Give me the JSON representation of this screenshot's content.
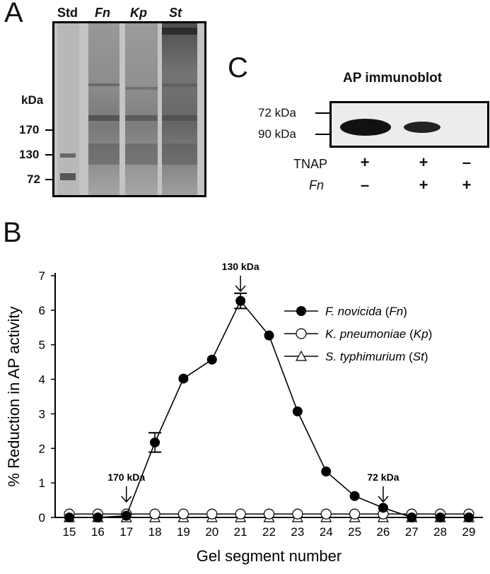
{
  "panel_a": {
    "letter": "A",
    "lanes": [
      {
        "label": "Std",
        "italic": false
      },
      {
        "label": "Fn",
        "italic": true
      },
      {
        "label": "Kp",
        "italic": true
      },
      {
        "label": "St",
        "italic": true
      }
    ],
    "unit": "kDa",
    "markers": [
      "170",
      "130",
      "72"
    ]
  },
  "panel_c": {
    "letter": "C",
    "title": "AP immunoblot",
    "markers": [
      "72 kDa",
      "90 kDa"
    ],
    "rows": [
      {
        "label": "TNAP",
        "italic": false,
        "signs": [
          "+",
          "+",
          "–"
        ]
      },
      {
        "label": "Fn",
        "italic": true,
        "signs": [
          "–",
          "+",
          "+"
        ]
      }
    ]
  },
  "panel_b": {
    "letter": "B"
  },
  "chart_data": {
    "type": "line",
    "xlabel": "Gel segment number",
    "ylabel": "% Reduction in AP activity",
    "x": [
      15,
      16,
      17,
      18,
      19,
      20,
      21,
      22,
      23,
      24,
      25,
      26,
      27,
      28,
      29
    ],
    "xlim": [
      15,
      29
    ],
    "ylim": [
      0,
      7
    ],
    "yticks": [
      0,
      1,
      2,
      3,
      4,
      5,
      6,
      7
    ],
    "series": [
      {
        "name": "F. novicida (Fn)",
        "marker": "filled-circle",
        "values": [
          0,
          0,
          0.05,
          2.17,
          4.02,
          4.57,
          6.27,
          5.27,
          3.07,
          1.33,
          0.62,
          0.28,
          0,
          0,
          0
        ],
        "error": [
          0,
          0,
          0,
          0.28,
          0,
          0,
          0.22,
          0,
          0,
          0,
          0,
          0,
          0,
          0,
          0
        ]
      },
      {
        "name": "K. pneumoniae (Kp)",
        "marker": "open-circle",
        "values": [
          0.1,
          0.1,
          0.1,
          0.1,
          0.1,
          0.1,
          0.1,
          0.1,
          0.1,
          0.1,
          0.1,
          0.1,
          0.1,
          0.1,
          0.1
        ]
      },
      {
        "name": "S. typhimurium (St)",
        "marker": "open-triangle",
        "values": [
          0,
          0,
          0,
          0,
          0,
          0,
          0,
          0,
          0,
          0,
          0,
          0,
          0,
          0,
          0
        ]
      }
    ],
    "legend": [
      {
        "italic": "F. novicida",
        "rest": " (",
        "abbr": "Fn",
        "close": ")"
      },
      {
        "italic": "K. pneumoniae",
        "rest": " (",
        "abbr": "Kp",
        "close": ")"
      },
      {
        "italic": "S. typhimurium",
        "rest": " (",
        "abbr": "St",
        "close": ")"
      }
    ],
    "legend_position": "top-right",
    "annotations": [
      {
        "text": "130 kDa",
        "x": 21,
        "y": 6.55
      },
      {
        "text": "170 kDa",
        "x": 17,
        "y": 0.45
      },
      {
        "text": "72 kDa",
        "x": 26,
        "y": 0.45
      }
    ]
  }
}
